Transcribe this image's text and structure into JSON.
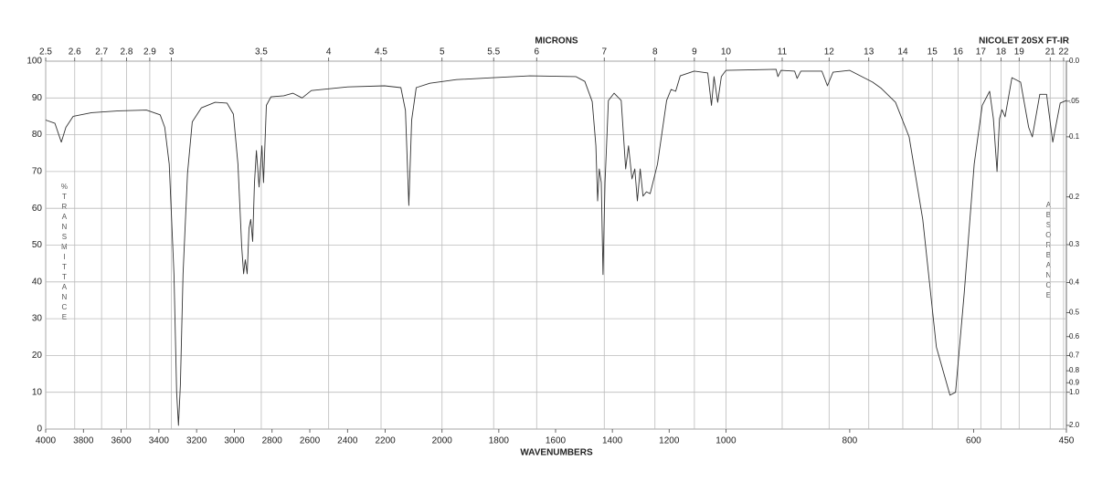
{
  "chart_data": {
    "type": "line",
    "title": "NICOLET 20SX FT-IR",
    "x_label": "WAVENUMBERS",
    "x2_label": "MICRONS",
    "y_label": "%TRANSMITTANCE",
    "y2_label": "ABSORBANCE",
    "color": "#333333",
    "grid": true,
    "xlim": [
      4000,
      450
    ],
    "xticks": [
      4000,
      3800,
      3600,
      3400,
      3200,
      3000,
      2800,
      2600,
      2400,
      2200,
      2000,
      1800,
      1600,
      1400,
      1200,
      1000,
      800,
      600,
      450
    ],
    "x2ticks": [
      2.5,
      2.6,
      2.7,
      2.8,
      2.9,
      3,
      3.5,
      4,
      4.5,
      5,
      5.5,
      6,
      7,
      8,
      9,
      10,
      11,
      12,
      13,
      14,
      15,
      16,
      17,
      18,
      19,
      21,
      22
    ],
    "ylim": [
      0,
      100
    ],
    "yticks": [
      0,
      10,
      20,
      30,
      40,
      50,
      60,
      70,
      80,
      90,
      100
    ],
    "y2ticks": [
      {
        "value": 0,
        "label": "0.0"
      },
      {
        "value": 0.05,
        "label": ".05"
      },
      0.1,
      0.2,
      0.3,
      0.4,
      0.5,
      0.6,
      0.7,
      0.8,
      0.9,
      {
        "value": 1,
        "label": "1.0"
      },
      {
        "value": 2,
        "label": "2.0"
      }
    ],
    "x": [
      4000,
      3951,
      3917,
      3893,
      3854,
      3757,
      3612,
      3466,
      3393,
      3369,
      3345,
      3320,
      3306,
      3296,
      3286,
      3272,
      3248,
      3223,
      3175,
      3102,
      3039,
      3005,
      2981,
      2961,
      2951,
      2942,
      2932,
      2922,
      2913,
      2903,
      2893,
      2883,
      2869,
      2854,
      2845,
      2830,
      2806,
      2738,
      2689,
      2641,
      2592,
      2495,
      2398,
      2204,
      2145,
      2129,
      2117,
      2107,
      2091,
      2043,
      1949,
      1818,
      1690,
      1529,
      1497,
      1471,
      1458,
      1452,
      1446,
      1439,
      1433,
      1426,
      1414,
      1394,
      1369,
      1353,
      1343,
      1331,
      1321,
      1312,
      1302,
      1292,
      1280,
      1267,
      1241,
      1209,
      1193,
      1177,
      1161,
      1112,
      1064,
      1051,
      1042,
      1029,
      1016,
      1000,
      919,
      916,
      911,
      889,
      885,
      879,
      845,
      836,
      827,
      800,
      763,
      749,
      726,
      704,
      682,
      660,
      638,
      629,
      615,
      599,
      586,
      574,
      568,
      562,
      558,
      554,
      549,
      538,
      524,
      511,
      505,
      493,
      482,
      472,
      460,
      450
    ],
    "y": [
      84,
      83.1,
      78,
      82,
      85,
      86,
      86.5,
      86.7,
      85.4,
      82,
      72,
      42,
      10,
      1,
      12,
      42,
      69.5,
      83.5,
      87.3,
      88.8,
      88.6,
      85.6,
      72,
      49.6,
      42.2,
      46,
      42.2,
      54.6,
      57,
      51,
      67,
      75.7,
      65.8,
      77,
      67,
      88,
      90.3,
      90.6,
      91.3,
      90,
      92,
      92.5,
      93,
      93.3,
      92.8,
      86.6,
      60.8,
      84,
      92.8,
      94,
      95,
      95.5,
      96,
      95.8,
      94.5,
      89,
      77,
      62,
      70.7,
      67,
      42,
      67,
      89.3,
      91.3,
      89.3,
      70.7,
      77,
      68,
      70.7,
      62,
      70.7,
      63.3,
      64.5,
      64,
      72,
      89.3,
      92.3,
      91.8,
      96,
      97.3,
      96.8,
      88,
      95.8,
      88.8,
      95.8,
      97.5,
      97.8,
      95.8,
      97.5,
      97.3,
      95.3,
      97.3,
      97.3,
      93.3,
      97,
      97.5,
      94.3,
      92.6,
      88.8,
      79.4,
      57,
      22.3,
      9.2,
      10,
      37,
      72,
      88,
      91.8,
      84.4,
      70,
      84.4,
      86.8,
      84.9,
      95.5,
      94.3,
      82,
      79.4,
      91,
      91,
      78,
      88.6,
      89.3
    ]
  }
}
